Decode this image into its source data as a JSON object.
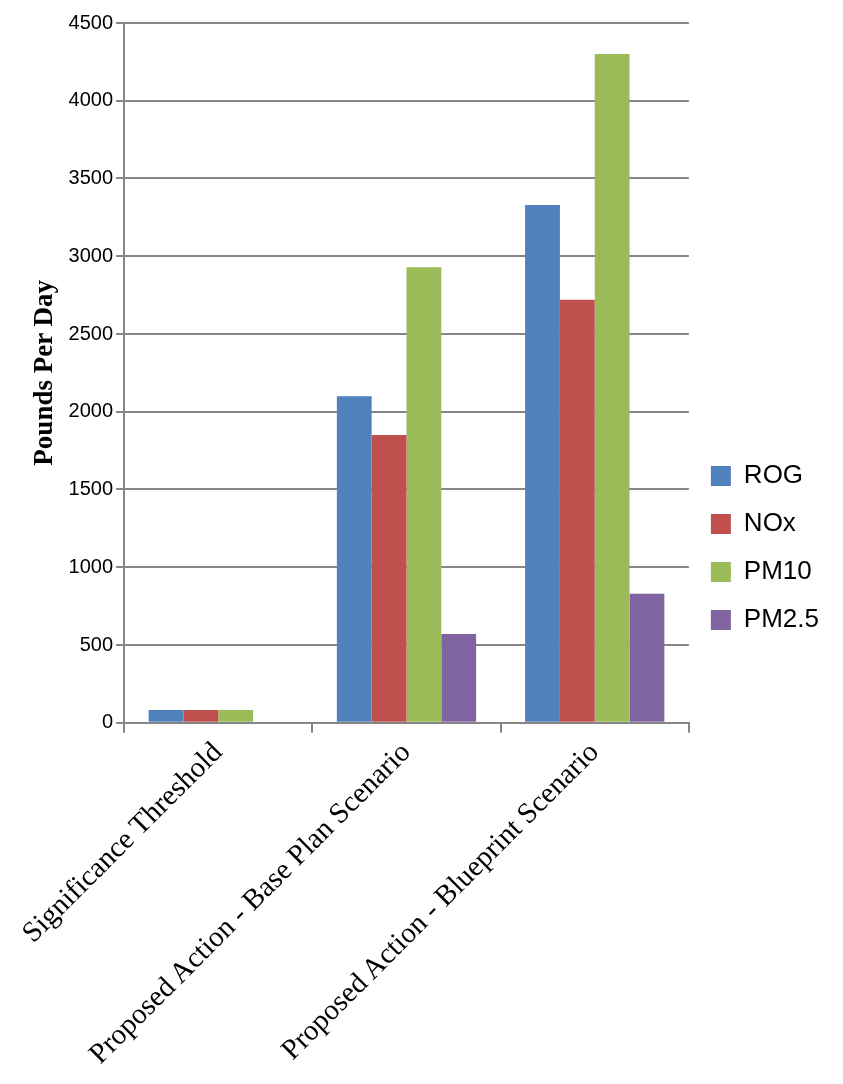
{
  "chart_data": {
    "type": "bar",
    "ylabel": "Pounds Per Day",
    "categories": [
      "Significance Threshold",
      "Proposed Action - Base Plan Scenario",
      "Proposed Action - Blueprint Scenario"
    ],
    "series": [
      {
        "name": "ROG",
        "color": "#4f81bd",
        "values": [
          82,
          2100,
          3330
        ]
      },
      {
        "name": "NOx",
        "color": "#c0504d",
        "values": [
          82,
          1850,
          2720
        ]
      },
      {
        "name": "PM10",
        "color": "#9bbb59",
        "values": [
          82,
          2930,
          4300
        ]
      },
      {
        "name": "PM2.5",
        "color": "#8064a2",
        "values": [
          null,
          570,
          830
        ]
      }
    ],
    "ylim": [
      0,
      4500
    ],
    "yticks": [
      0,
      500,
      1000,
      1500,
      2000,
      2500,
      3000,
      3500,
      4000,
      4500
    ],
    "grid": "y",
    "legend": "right"
  }
}
